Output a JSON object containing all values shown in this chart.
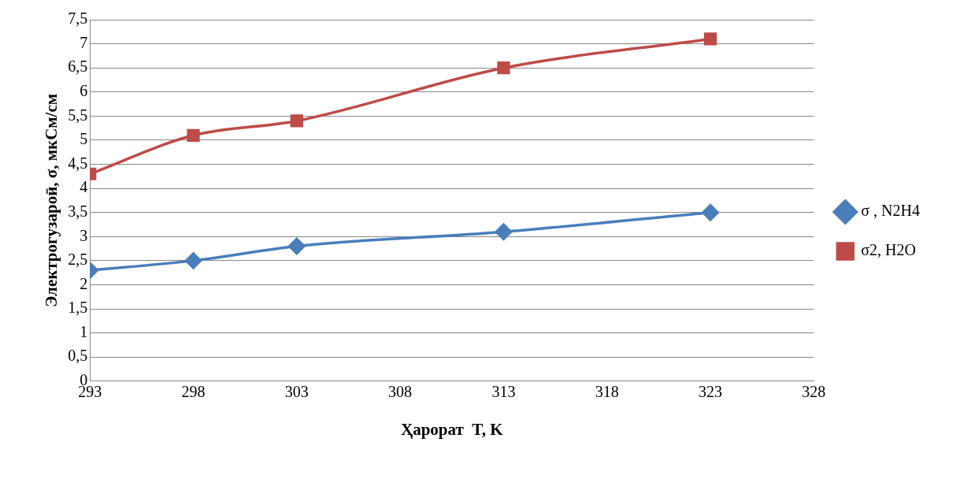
{
  "chart_data": {
    "type": "line",
    "xlabel": "Ҳарорат  T, K",
    "ylabel": "Электрогузароӣ, σ, мкСм/см",
    "x": [
      293,
      298,
      303,
      313,
      323
    ],
    "series": [
      {
        "name": "σ , N2H4",
        "color": "#4a7ebb",
        "marker": "diamond",
        "values": [
          2.3,
          2.5,
          2.8,
          3.1,
          3.5
        ]
      },
      {
        "name": "σ2, H2O",
        "color": "#be4b48",
        "marker": "square",
        "values": [
          4.3,
          5.1,
          5.4,
          6.5,
          7.1
        ]
      }
    ],
    "xlim": [
      293,
      328
    ],
    "xticks": [
      293,
      298,
      303,
      308,
      313,
      318,
      323,
      328
    ],
    "ylim": [
      0,
      7.5
    ],
    "yticks": [
      0,
      {
        "value": 0.5,
        "label": "0,5"
      },
      1,
      {
        "value": 1.5,
        "label": "1,5"
      },
      2,
      {
        "value": 2.5,
        "label": "2,5"
      },
      3,
      {
        "value": 3.5,
        "label": "3,5"
      },
      4,
      {
        "value": 4.5,
        "label": "4,5"
      },
      5,
      {
        "value": 5.5,
        "label": "5,5"
      },
      6,
      {
        "value": 6.5,
        "label": "6,5"
      },
      7,
      {
        "value": 7.5,
        "label": "7,5"
      }
    ],
    "grid": "y",
    "legend": "right",
    "line_style": "solid"
  }
}
